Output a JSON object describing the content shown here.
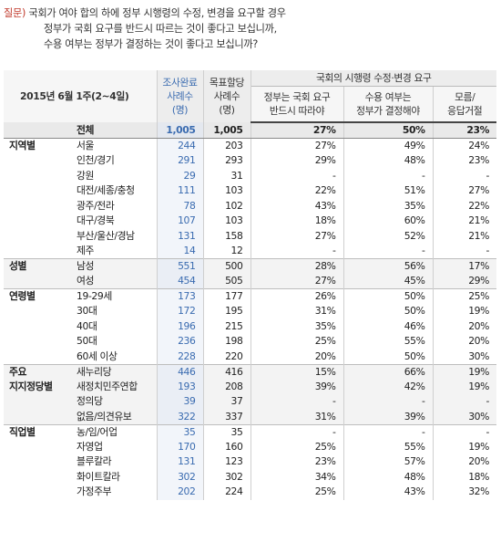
{
  "question": {
    "label": "질문)",
    "line1": "국회가 여야 합의 하에 정부 시행령의 수정, 변경을 요구할 경우",
    "line2": "정부가 국회 요구를 반드시 따르는 것이 좋다고 보십니까,",
    "line3": "수용 여부는 정부가 결정하는 것이 좋다고 보십니까?"
  },
  "header": {
    "title": "2015년 6월 1주(2~4일)",
    "col_done_1": "조사완료",
    "col_done_2": "사례수",
    "col_done_3": "(명)",
    "col_target_1": "목표할당",
    "col_target_2": "사례수",
    "col_target_3": "(명)",
    "group_title": "국회의 시행령 수정·변경 요구",
    "opt1_1": "정부는 국회 요구",
    "opt1_2": "반드시 따라야",
    "opt2_1": "수용 여부는",
    "opt2_2": "정부가 결정해야",
    "opt3_1": "모름/",
    "opt3_2": "응답거절"
  },
  "rows": [
    {
      "group": "",
      "sub": "전체",
      "n1": "1,005",
      "n2": "1,005",
      "a": "27%",
      "b": "50%",
      "c": "23%"
    },
    {
      "group": "지역별",
      "sub": "서울",
      "n1": "244",
      "n2": "203",
      "a": "27%",
      "b": "49%",
      "c": "24%"
    },
    {
      "group": "",
      "sub": "인천/경기",
      "n1": "291",
      "n2": "293",
      "a": "29%",
      "b": "48%",
      "c": "23%"
    },
    {
      "group": "",
      "sub": "강원",
      "n1": "29",
      "n2": "31",
      "a": "-",
      "b": "-",
      "c": "-"
    },
    {
      "group": "",
      "sub": "대전/세종/충청",
      "n1": "111",
      "n2": "103",
      "a": "22%",
      "b": "51%",
      "c": "27%"
    },
    {
      "group": "",
      "sub": "광주/전라",
      "n1": "78",
      "n2": "102",
      "a": "43%",
      "b": "35%",
      "c": "22%"
    },
    {
      "group": "",
      "sub": "대구/경북",
      "n1": "107",
      "n2": "103",
      "a": "18%",
      "b": "60%",
      "c": "21%"
    },
    {
      "group": "",
      "sub": "부산/울산/경남",
      "n1": "131",
      "n2": "158",
      "a": "27%",
      "b": "52%",
      "c": "21%"
    },
    {
      "group": "",
      "sub": "제주",
      "n1": "14",
      "n2": "12",
      "a": "-",
      "b": "-",
      "c": "-"
    },
    {
      "group": "성별",
      "sub": "남성",
      "n1": "551",
      "n2": "500",
      "a": "28%",
      "b": "56%",
      "c": "17%"
    },
    {
      "group": "",
      "sub": "여성",
      "n1": "454",
      "n2": "505",
      "a": "27%",
      "b": "45%",
      "c": "29%"
    },
    {
      "group": "연령별",
      "sub": "19-29세",
      "n1": "173",
      "n2": "177",
      "a": "26%",
      "b": "50%",
      "c": "25%"
    },
    {
      "group": "",
      "sub": "30대",
      "n1": "172",
      "n2": "195",
      "a": "31%",
      "b": "50%",
      "c": "19%"
    },
    {
      "group": "",
      "sub": "40대",
      "n1": "196",
      "n2": "215",
      "a": "35%",
      "b": "46%",
      "c": "20%"
    },
    {
      "group": "",
      "sub": "50대",
      "n1": "236",
      "n2": "198",
      "a": "25%",
      "b": "55%",
      "c": "20%"
    },
    {
      "group": "",
      "sub": "60세 이상",
      "n1": "228",
      "n2": "220",
      "a": "20%",
      "b": "50%",
      "c": "30%"
    },
    {
      "group": "주요",
      "sub": "새누리당",
      "n1": "446",
      "n2": "416",
      "a": "15%",
      "b": "66%",
      "c": "19%"
    },
    {
      "group": "지지정당별",
      "sub": "새정치민주연합",
      "n1": "193",
      "n2": "208",
      "a": "39%",
      "b": "42%",
      "c": "19%"
    },
    {
      "group": "",
      "sub": "정의당",
      "n1": "39",
      "n2": "37",
      "a": "-",
      "b": "-",
      "c": "-"
    },
    {
      "group": "",
      "sub": "없음/의견유보",
      "n1": "322",
      "n2": "337",
      "a": "31%",
      "b": "39%",
      "c": "30%"
    },
    {
      "group": "직업별",
      "sub": "농/임/어업",
      "n1": "35",
      "n2": "35",
      "a": "-",
      "b": "-",
      "c": "-"
    },
    {
      "group": "",
      "sub": "자영업",
      "n1": "170",
      "n2": "160",
      "a": "25%",
      "b": "55%",
      "c": "19%"
    },
    {
      "group": "",
      "sub": "블루칼라",
      "n1": "131",
      "n2": "123",
      "a": "23%",
      "b": "57%",
      "c": "20%"
    },
    {
      "group": "",
      "sub": "화이트칼라",
      "n1": "302",
      "n2": "302",
      "a": "34%",
      "b": "48%",
      "c": "18%"
    },
    {
      "group": "",
      "sub": "가정주부",
      "n1": "202",
      "n2": "224",
      "a": "25%",
      "b": "43%",
      "c": "32%"
    }
  ]
}
